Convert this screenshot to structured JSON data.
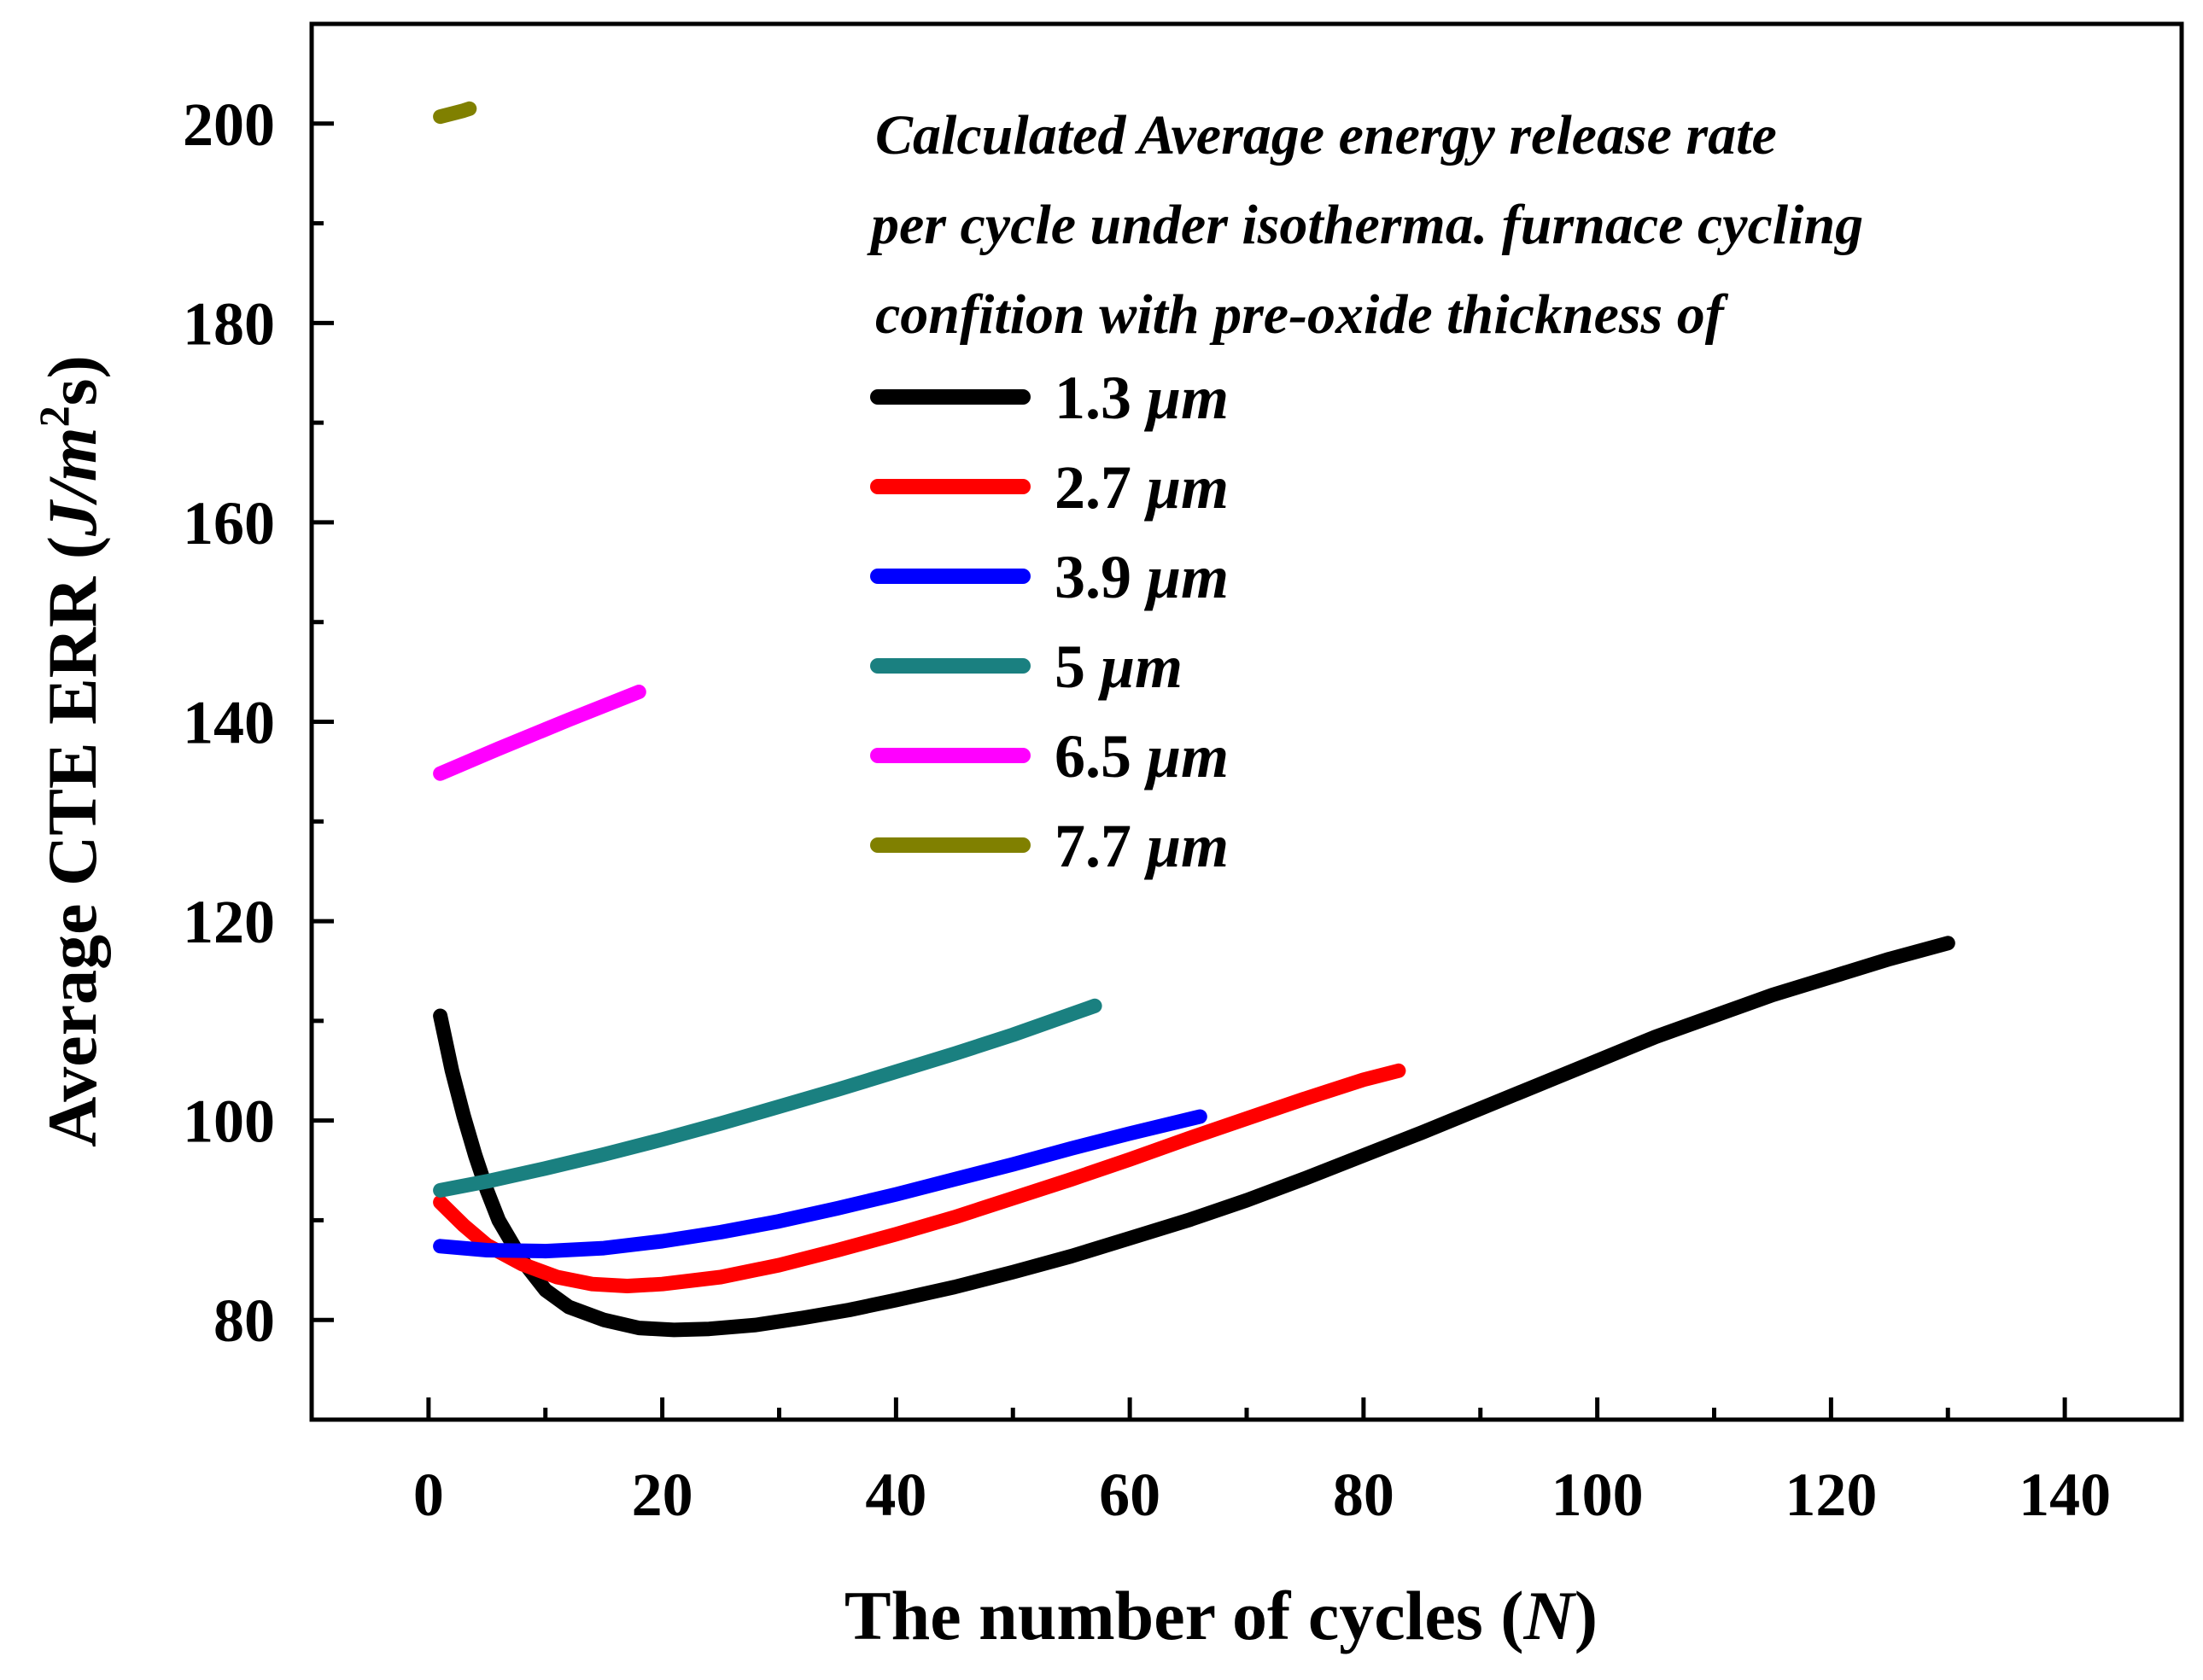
{
  "chart_data": {
    "type": "line",
    "title": "",
    "legend_title": [
      "Calculated Average energy release rate",
      "per cycle under isotherma. furnace cycling",
      "confition with pre-oxide thickness of"
    ],
    "legend_position": "top-right",
    "xlabel": {
      "text": "The number of cycles (",
      "var": "N",
      "close": ")"
    },
    "ylabel": {
      "text": "Average CTE ERR (",
      "unit": "J/m",
      "sup": "2",
      "tail": "s)"
    },
    "xlim": [
      -10,
      150
    ],
    "ylim": [
      70,
      210
    ],
    "xticks": [
      0,
      20,
      40,
      60,
      80,
      100,
      120,
      140
    ],
    "xtick_labels": [
      "0",
      "20",
      "40",
      "60",
      "80",
      "100",
      "120",
      "140"
    ],
    "yticks": [
      80,
      100,
      120,
      140,
      160,
      180,
      200
    ],
    "ytick_labels": [
      "80",
      "100",
      "120",
      "140",
      "160",
      "180",
      "200"
    ],
    "grid": false,
    "series": [
      {
        "name": "1.3",
        "unit": "μm",
        "color": "#000000",
        "x": [
          1,
          2,
          3,
          4,
          5,
          6,
          8,
          10,
          12,
          15,
          18,
          21,
          24,
          28,
          32,
          36,
          40,
          45,
          50,
          55,
          60,
          65,
          70,
          75,
          80,
          85,
          90,
          95,
          100,
          105,
          110,
          115,
          120,
          125,
          130
        ],
        "y": [
          110.5,
          105,
          100.5,
          96.5,
          93,
          90,
          86,
          83,
          81.3,
          80,
          79.2,
          79,
          79.1,
          79.5,
          80.2,
          81,
          82,
          83.3,
          84.8,
          86.4,
          88.2,
          90,
          92,
          94.2,
          96.5,
          98.8,
          101.2,
          103.6,
          106,
          108.4,
          110.5,
          112.6,
          114.4,
          116.2,
          117.8
        ]
      },
      {
        "name": "2.7",
        "unit": "μm",
        "color": "#ff0000",
        "x": [
          1,
          3,
          5,
          8,
          11,
          14,
          17,
          20,
          25,
          30,
          35,
          40,
          45,
          50,
          55,
          60,
          65,
          70,
          75,
          80,
          83
        ],
        "y": [
          91.8,
          89.5,
          87.5,
          85.6,
          84.3,
          83.6,
          83.4,
          83.6,
          84.3,
          85.5,
          87,
          88.6,
          90.3,
          92.2,
          94.1,
          96.1,
          98.2,
          100.2,
          102.2,
          104.1,
          105
        ]
      },
      {
        "name": "3.9",
        "unit": "μm",
        "color": "#0000ff",
        "x": [
          1,
          5,
          10,
          15,
          20,
          25,
          30,
          35,
          40,
          45,
          50,
          55,
          60,
          66
        ],
        "y": [
          87.4,
          87,
          86.9,
          87.2,
          87.9,
          88.8,
          89.9,
          91.2,
          92.6,
          94.1,
          95.6,
          97.2,
          98.7,
          100.4
        ]
      },
      {
        "name": "5",
        "unit": "μm",
        "color": "#1a8080",
        "x": [
          1,
          5,
          10,
          15,
          20,
          25,
          30,
          35,
          40,
          45,
          50,
          57
        ],
        "y": [
          93,
          93.9,
          95.2,
          96.6,
          98.1,
          99.7,
          101.4,
          103.1,
          104.9,
          106.7,
          108.6,
          111.5
        ]
      },
      {
        "name": "6.5",
        "unit": "μm",
        "color": "#ff00ff",
        "x": [
          1,
          6,
          12,
          18
        ],
        "y": [
          134.8,
          137.3,
          140.2,
          143
        ]
      },
      {
        "name": "7.7",
        "unit": "μm",
        "color": "#808000",
        "x": [
          1,
          2,
          3,
          3.5
        ],
        "y": [
          200.7,
          201,
          201.3,
          201.5
        ]
      }
    ]
  }
}
